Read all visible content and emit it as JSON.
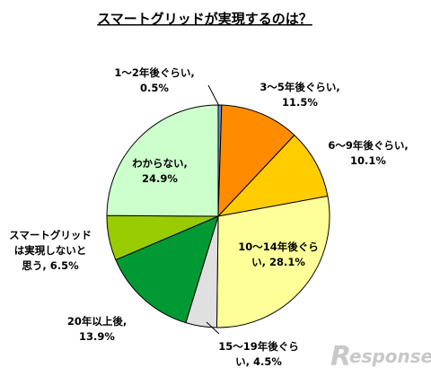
{
  "chart_data": {
    "type": "pie",
    "title": "スマートグリッドが実現するのは？",
    "slices": [
      {
        "label_lines": [
          "1～2年後ぐらい,",
          "0.5%"
        ],
        "value": 0.5,
        "color": "#6a8ed6"
      },
      {
        "label_lines": [
          "3～5年後ぐらい,",
          "11.5%"
        ],
        "value": 11.5,
        "color": "#ff8c00"
      },
      {
        "label_lines": [
          "6～9年後ぐらい,",
          "10.1%"
        ],
        "value": 10.1,
        "color": "#ffcc00"
      },
      {
        "label_lines": [
          "10～14年後ぐら",
          "い, 28.1%"
        ],
        "value": 28.1,
        "color": "#ffff99"
      },
      {
        "label_lines": [
          "15～19年後ぐら",
          "い, 4.5%"
        ],
        "value": 4.5,
        "color": "#e0e0e0"
      },
      {
        "label_lines": [
          "20年以上後,",
          "13.9%"
        ],
        "value": 13.9,
        "color": "#009933"
      },
      {
        "label_lines": [
          "スマートグリッド",
          "は実現しないと",
          "思う, 6.5%"
        ],
        "value": 6.5,
        "color": "#99cc00"
      },
      {
        "label_lines": [
          "わからない,",
          "24.9%"
        ],
        "value": 24.9,
        "color": "#ccffcc"
      }
    ]
  },
  "watermark": {
    "letter": "R",
    "text": "esponse"
  }
}
